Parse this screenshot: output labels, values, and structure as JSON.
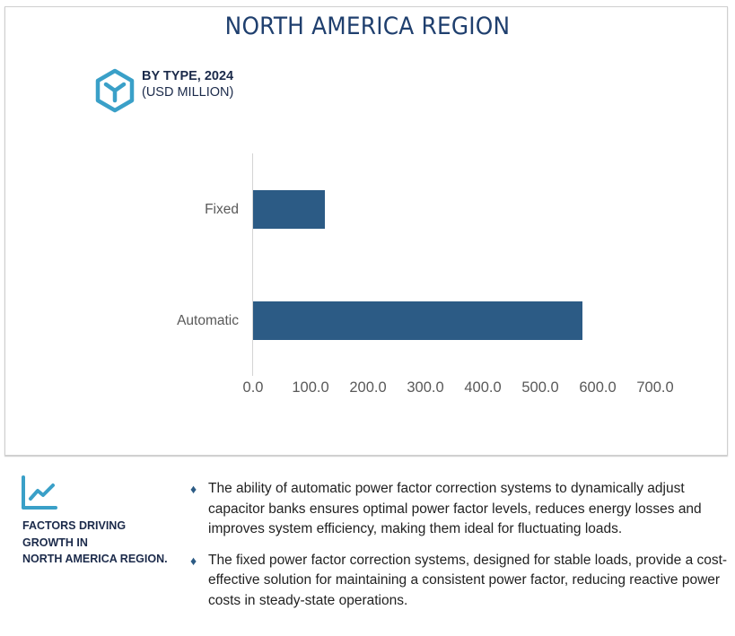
{
  "header": {
    "title": "NORTH AMERICA REGION",
    "subtitle_line1": "BY TYPE, 2024",
    "subtitle_line2": "(USD MILLION)",
    "icon": "cube-icon"
  },
  "colors": {
    "bar": "#2c5b85",
    "title": "#1f3f6e",
    "accent_icon": "#3aa0c8"
  },
  "chart_data": {
    "type": "bar",
    "orientation": "horizontal",
    "title": "NORTH AMERICA REGION",
    "subtitle": "BY TYPE, 2024 (USD MILLION)",
    "categories": [
      "Fixed",
      "Automatic"
    ],
    "values": [
      125,
      573
    ],
    "xlabel": "",
    "ylabel": "",
    "xlim": [
      0,
      700
    ],
    "xticks": [
      "0.0",
      "100.0",
      "200.0",
      "300.0",
      "400.0",
      "500.0",
      "600.0",
      "700.0"
    ],
    "grid": false,
    "legend": null
  },
  "factors": {
    "icon": "trend-chart-icon",
    "title_line1": "FACTORS DRIVING",
    "title_line2": "GROWTH IN",
    "title_line3": "NORTH AMERICA REGION.",
    "bullets": [
      "The ability of automatic power factor correction systems to dynamically adjust capacitor banks ensures optimal power factor levels, reduces energy losses and improves system efficiency, making them ideal for fluctuating loads.",
      "The fixed power factor correction systems, designed for stable loads, provide a cost-effective solution for maintaining a consistent power factor, reducing reactive power costs in steady-state operations."
    ],
    "bullet_marker": "♦"
  }
}
